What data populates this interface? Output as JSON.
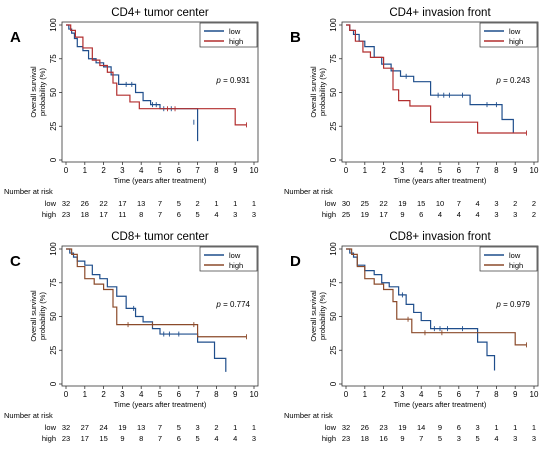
{
  "chart_data": [
    {
      "type": "line",
      "panel_letter": "A",
      "title": "CD4+ tumor center",
      "xlabel": "Time (years after treatment)",
      "ylabel": "Overall survival probability (%)",
      "xlim": [
        0,
        10
      ],
      "ylim": [
        0,
        100
      ],
      "x_ticks": [
        "0",
        "1",
        "2",
        "3",
        "4",
        "5",
        "6",
        "7",
        "8",
        "9",
        "10"
      ],
      "y_ticks": [
        "0",
        "25",
        "50",
        "75",
        "100"
      ],
      "p_value": "= 0.931",
      "legend_position": "top-right",
      "risk_title": "Number at risk",
      "series": [
        {
          "name": "low",
          "color": "#1f4e8c",
          "x": [
            0,
            0.15,
            0.3,
            0.45,
            0.6,
            0.9,
            1.2,
            1.6,
            2.0,
            2.4,
            2.8,
            3.3,
            3.7,
            4.1,
            4.5,
            5.0,
            6.3,
            7.0,
            7.0
          ],
          "y": [
            100,
            97,
            94,
            90,
            84,
            81,
            75,
            72,
            69,
            63,
            56,
            56,
            50,
            44,
            41,
            38,
            38,
            28,
            14
          ],
          "censors": [
            [
              3.2,
              56
            ],
            [
              3.5,
              56
            ],
            [
              4.6,
              41
            ],
            [
              4.8,
              41
            ],
            [
              5.2,
              38
            ],
            [
              5.6,
              38
            ],
            [
              6.8,
              28
            ]
          ],
          "at_risk": [
            "32",
            "26",
            "22",
            "17",
            "13",
            "7",
            "5",
            "2",
            "1",
            "1",
            "1"
          ]
        },
        {
          "name": "high",
          "color": "#b22e2e",
          "x": [
            0,
            0.25,
            0.5,
            0.9,
            1.4,
            1.8,
            2.2,
            2.5,
            2.7,
            3.4,
            3.9,
            9.0,
            9.6
          ],
          "y": [
            100,
            96,
            91,
            83,
            74,
            70,
            65,
            57,
            48,
            43,
            38,
            26,
            26
          ],
          "censors": [
            [
              5.4,
              38
            ],
            [
              5.8,
              38
            ],
            [
              9.6,
              26
            ]
          ],
          "at_risk": [
            "23",
            "18",
            "17",
            "11",
            "8",
            "7",
            "6",
            "5",
            "4",
            "3",
            "3"
          ]
        }
      ]
    },
    {
      "type": "line",
      "panel_letter": "B",
      "title": "CD4+ invasion front",
      "xlabel": "Time (years after treatment)",
      "ylabel": "Overall survival probability (%)",
      "xlim": [
        0,
        10
      ],
      "ylim": [
        0,
        100
      ],
      "x_ticks": [
        "0",
        "1",
        "2",
        "3",
        "4",
        "5",
        "6",
        "7",
        "8",
        "9",
        "10"
      ],
      "y_ticks": [
        "0",
        "25",
        "50",
        "75",
        "100"
      ],
      "p_value": "= 0.243",
      "legend_position": "top-right",
      "risk_title": "Number at risk",
      "series": [
        {
          "name": "low",
          "color": "#1f4e8c",
          "x": [
            0,
            0.2,
            0.4,
            0.7,
            1.0,
            1.5,
            1.9,
            2.4,
            2.9,
            3.6,
            4.5,
            6.6,
            8.3,
            8.9
          ],
          "y": [
            100,
            96,
            93,
            88,
            84,
            76,
            71,
            66,
            62,
            58,
            48,
            41,
            30,
            20
          ],
          "censors": [
            [
              3.2,
              62
            ],
            [
              4.9,
              48
            ],
            [
              5.2,
              48
            ],
            [
              5.5,
              48
            ],
            [
              6.2,
              48
            ],
            [
              7.5,
              41
            ],
            [
              8.0,
              41
            ]
          ],
          "at_risk": [
            "30",
            "25",
            "22",
            "19",
            "15",
            "10",
            "7",
            "4",
            "3",
            "2",
            "2"
          ]
        },
        {
          "name": "high",
          "color": "#b22e2e",
          "x": [
            0,
            0.2,
            0.5,
            0.9,
            1.3,
            2.0,
            2.5,
            2.8,
            3.4,
            4.5,
            7.0,
            9.6
          ],
          "y": [
            100,
            96,
            88,
            80,
            76,
            68,
            52,
            44,
            40,
            28,
            20,
            20
          ],
          "censors": [
            [
              9.6,
              20
            ]
          ],
          "at_risk": [
            "25",
            "19",
            "17",
            "9",
            "6",
            "4",
            "4",
            "4",
            "3",
            "3",
            "2"
          ]
        }
      ]
    },
    {
      "type": "line",
      "panel_letter": "C",
      "title": "CD8+ tumor center",
      "xlabel": "Time (years after treatment)",
      "ylabel": "Overall survival probability (%)",
      "xlim": [
        0,
        10
      ],
      "ylim": [
        0,
        100
      ],
      "x_ticks": [
        "0",
        "1",
        "2",
        "3",
        "4",
        "5",
        "6",
        "7",
        "8",
        "9",
        "10"
      ],
      "y_ticks": [
        "0",
        "25",
        "50",
        "75",
        "100"
      ],
      "p_value": "= 0.774",
      "legend_position": "top-right",
      "risk_title": "Number at risk",
      "series": [
        {
          "name": "low",
          "color": "#1f4e8c",
          "x": [
            0,
            0.2,
            0.4,
            0.6,
            1.0,
            1.4,
            1.8,
            2.2,
            2.7,
            3.2,
            3.7,
            4.1,
            4.6,
            5.0,
            7.0,
            7.9,
            8.5
          ],
          "y": [
            100,
            97,
            94,
            91,
            88,
            81,
            78,
            72,
            65,
            56,
            50,
            46,
            41,
            37,
            31,
            19,
            9
          ],
          "censors": [
            [
              3.6,
              56
            ],
            [
              5.2,
              37
            ],
            [
              5.5,
              37
            ],
            [
              6.0,
              37
            ]
          ],
          "at_risk": [
            "32",
            "27",
            "24",
            "19",
            "13",
            "7",
            "5",
            "3",
            "2",
            "1",
            "1"
          ]
        },
        {
          "name": "high",
          "color": "#8b4a2a",
          "x": [
            0,
            0.3,
            0.6,
            1.0,
            1.5,
            2.0,
            2.5,
            2.7,
            7.0,
            9.6
          ],
          "y": [
            100,
            96,
            87,
            78,
            74,
            70,
            57,
            44,
            35,
            35
          ],
          "censors": [
            [
              3.3,
              44
            ],
            [
              4.6,
              44
            ],
            [
              6.8,
              44
            ],
            [
              9.6,
              35
            ]
          ],
          "at_risk": [
            "23",
            "17",
            "15",
            "9",
            "8",
            "7",
            "6",
            "5",
            "4",
            "4",
            "3"
          ]
        }
      ]
    },
    {
      "type": "line",
      "panel_letter": "D",
      "title": "CD8+ invasion front",
      "xlabel": "Time (years after treatment)",
      "ylabel": "Overall survival probability (%)",
      "xlim": [
        0,
        10
      ],
      "ylim": [
        0,
        100
      ],
      "x_ticks": [
        "0",
        "1",
        "2",
        "3",
        "4",
        "5",
        "6",
        "7",
        "8",
        "9",
        "10"
      ],
      "y_ticks": [
        "0",
        "25",
        "50",
        "75",
        "100"
      ],
      "p_value": "= 0.979",
      "legend_position": "top-right",
      "risk_title": "Number at risk",
      "series": [
        {
          "name": "low",
          "color": "#1f4e8c",
          "x": [
            0,
            0.2,
            0.4,
            0.6,
            1.0,
            1.5,
            1.9,
            2.3,
            2.8,
            3.2,
            3.6,
            4.0,
            4.5,
            7.0,
            7.5,
            7.9
          ],
          "y": [
            100,
            97,
            94,
            88,
            84,
            81,
            75,
            72,
            66,
            59,
            53,
            47,
            41,
            31,
            21,
            10
          ],
          "censors": [
            [
              3.0,
              66
            ],
            [
              4.7,
              41
            ],
            [
              5.0,
              41
            ],
            [
              5.4,
              41
            ],
            [
              6.2,
              41
            ]
          ],
          "at_risk": [
            "32",
            "26",
            "23",
            "19",
            "14",
            "9",
            "6",
            "3",
            "1",
            "1",
            "1"
          ]
        },
        {
          "name": "high",
          "color": "#8b4a2a",
          "x": [
            0,
            0.3,
            0.6,
            1.0,
            1.5,
            2.0,
            2.5,
            2.7,
            3.5,
            9.0,
            9.6
          ],
          "y": [
            100,
            96,
            87,
            78,
            74,
            70,
            61,
            48,
            38,
            29,
            29
          ],
          "censors": [
            [
              3.3,
              48
            ],
            [
              4.2,
              38
            ],
            [
              5.1,
              38
            ],
            [
              9.6,
              29
            ]
          ],
          "at_risk": [
            "23",
            "18",
            "16",
            "9",
            "7",
            "5",
            "3",
            "5",
            "4",
            "3",
            "3"
          ]
        }
      ]
    }
  ]
}
